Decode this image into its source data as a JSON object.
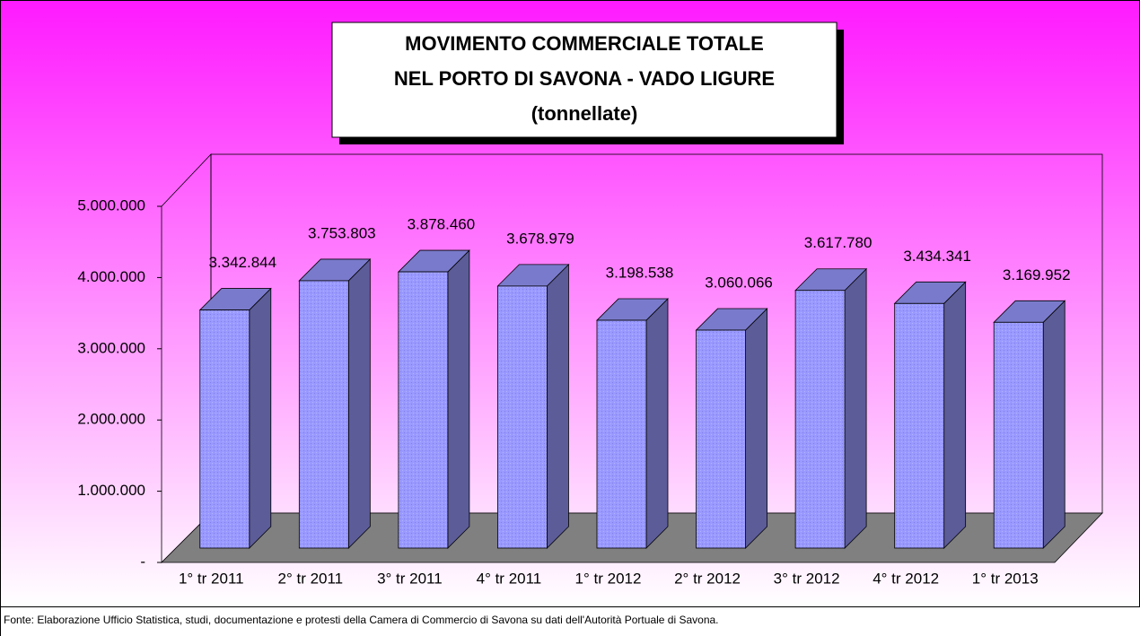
{
  "chart_data": {
    "type": "bar3d",
    "title": [
      "MOVIMENTO COMMERCIALE TOTALE",
      "NEL PORTO DI SAVONA - VADO LIGURE",
      "(tonnellate)"
    ],
    "categories": [
      "1° tr 2011",
      "2° tr 2011",
      "3° tr 2011",
      "4° tr 2011",
      "1° tr 2012",
      "2° tr 2012",
      "3° tr 2012",
      "4° tr 2012",
      "1° tr 2013"
    ],
    "values": [
      3342844,
      3753803,
      3878460,
      3678979,
      3198538,
      3060066,
      3617780,
      3434341,
      3169952
    ],
    "value_labels": [
      "3.342.844",
      "3.753.803",
      "3.878.460",
      "3.678.979",
      "3.198.538",
      "3.060.066",
      "3.617.780",
      "3.434.341",
      "3.169.952"
    ],
    "color": "#9999ff",
    "ylim": [
      0,
      5000000
    ],
    "yticks": [
      {
        "value": 0,
        "label": "-"
      },
      {
        "value": 1000000,
        "label": "1.000.000"
      },
      {
        "value": 2000000,
        "label": "2.000.000"
      },
      {
        "value": 3000000,
        "label": "3.000.000"
      },
      {
        "value": 4000000,
        "label": "4.000.000"
      },
      {
        "value": 5000000,
        "label": "5.000.000"
      }
    ],
    "source": "Fonte: Elaborazione Ufficio Statistica, studi, documentazione e protesti della Camera di Commercio di Savona su dati dell'Autorità Portuale di Savona."
  }
}
